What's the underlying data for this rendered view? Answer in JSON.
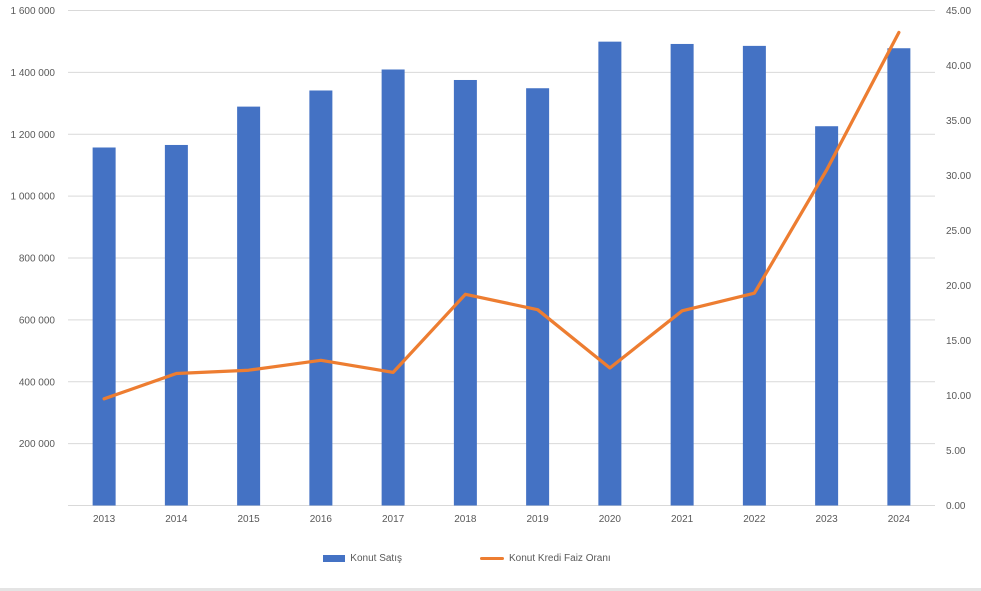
{
  "page": {
    "background": "#ffffff",
    "bottom_strip_color": "#e4e4e4"
  },
  "colors": {
    "bar_series": "#4472C4",
    "line_series": "#ED7D31",
    "gridline": "#D9D9D9",
    "axis_line": "#D9D9D9",
    "axis_text": "#595959"
  },
  "chart_data": {
    "type": "bar",
    "subtype": "combo-bar-line-dual-axis",
    "title": "",
    "categories": [
      "2013",
      "2014",
      "2015",
      "2016",
      "2017",
      "2018",
      "2019",
      "2020",
      "2021",
      "2022",
      "2023",
      "2024"
    ],
    "series": [
      {
        "name": "Konut Satış",
        "type": "bar",
        "axis": "left",
        "color": "#4472C4",
        "values": [
          1157190,
          1165381,
          1289320,
          1341453,
          1409314,
          1375398,
          1348729,
          1499316,
          1491856,
          1485622,
          1225926,
          1478025
        ]
      },
      {
        "name": "Konut Kredi Faiz Oranı",
        "type": "line",
        "axis": "right",
        "color": "#ED7D31",
        "values": [
          9.7,
          12.0,
          12.3,
          13.2,
          12.1,
          19.2,
          17.8,
          12.5,
          17.7,
          19.3,
          30.5,
          43.0
        ]
      }
    ],
    "left_axis": {
      "min": 0,
      "max": 1600000,
      "step": 200000,
      "ticks": [
        {
          "value": 1600000,
          "label": "1 600 000"
        },
        {
          "value": 1400000,
          "label": "1 400 000"
        },
        {
          "value": 1200000,
          "label": "1 200 000"
        },
        {
          "value": 1000000,
          "label": "1 000 000"
        },
        {
          "value": 800000,
          "label": "800 000"
        },
        {
          "value": 600000,
          "label": "600 000"
        },
        {
          "value": 400000,
          "label": "400 000"
        },
        {
          "value": 200000,
          "label": "200 000"
        }
      ]
    },
    "right_axis": {
      "min": 0,
      "max": 45,
      "step": 5,
      "ticks": [
        {
          "value": 45,
          "label": "45.00"
        },
        {
          "value": 40,
          "label": "40.00"
        },
        {
          "value": 35,
          "label": "35.00"
        },
        {
          "value": 30,
          "label": "30.00"
        },
        {
          "value": 25,
          "label": "25.00"
        },
        {
          "value": 20,
          "label": "20.00"
        },
        {
          "value": 15,
          "label": "15.00"
        },
        {
          "value": 10,
          "label": "10.00"
        },
        {
          "value": 5,
          "label": "5.00"
        },
        {
          "value": 0,
          "label": "0.00"
        }
      ]
    },
    "grid": true,
    "legend_position": "bottom"
  }
}
